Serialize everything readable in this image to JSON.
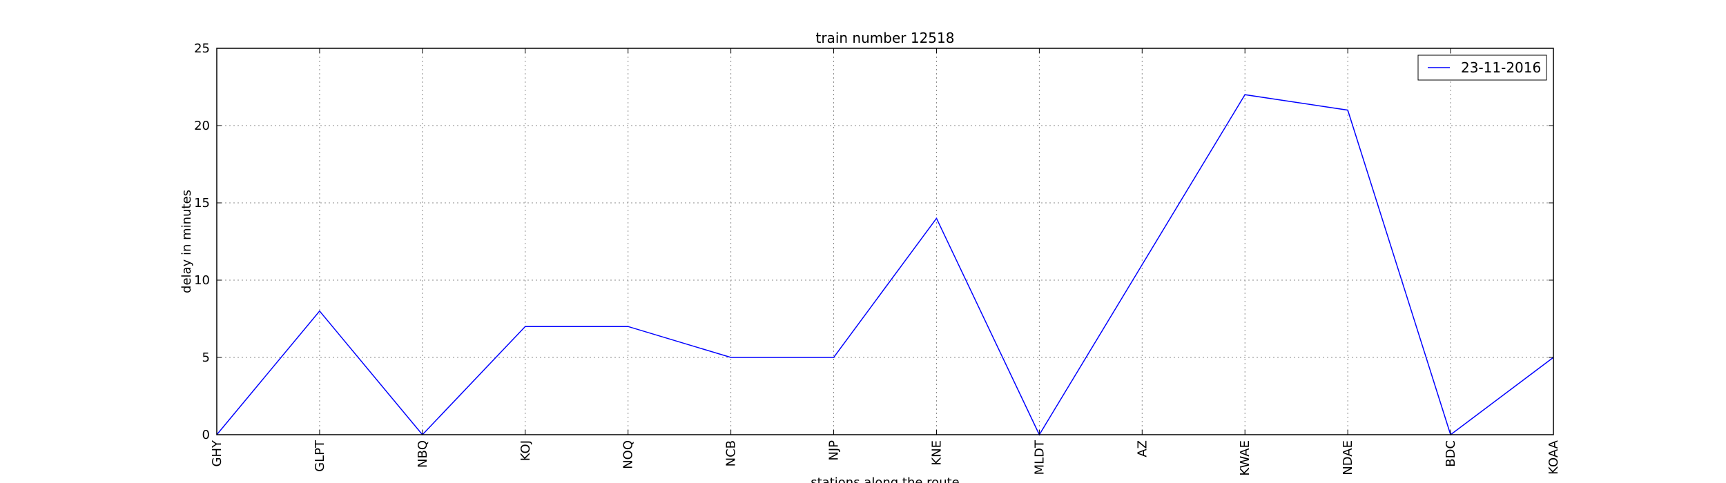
{
  "chart_data": {
    "type": "line",
    "title": "train number 12518",
    "xlabel": "stations along the route",
    "ylabel": "delay in minutes",
    "categories": [
      "GHY",
      "GLPT",
      "NBQ",
      "KOJ",
      "NOQ",
      "NCB",
      "NJP",
      "KNE",
      "MLDT",
      "AZ",
      "KWAE",
      "NDAE",
      "BDC",
      "KOAA"
    ],
    "series": [
      {
        "name": "23-11-2016",
        "color": "#0000ff",
        "values": [
          0,
          8,
          0,
          7,
          7,
          5,
          5,
          14,
          0,
          11,
          22,
          21,
          0,
          5
        ]
      }
    ],
    "ylim": [
      0,
      25
    ],
    "yticks": [
      0,
      5,
      10,
      15,
      20,
      25
    ],
    "grid": true,
    "legend_position": "top-right"
  }
}
